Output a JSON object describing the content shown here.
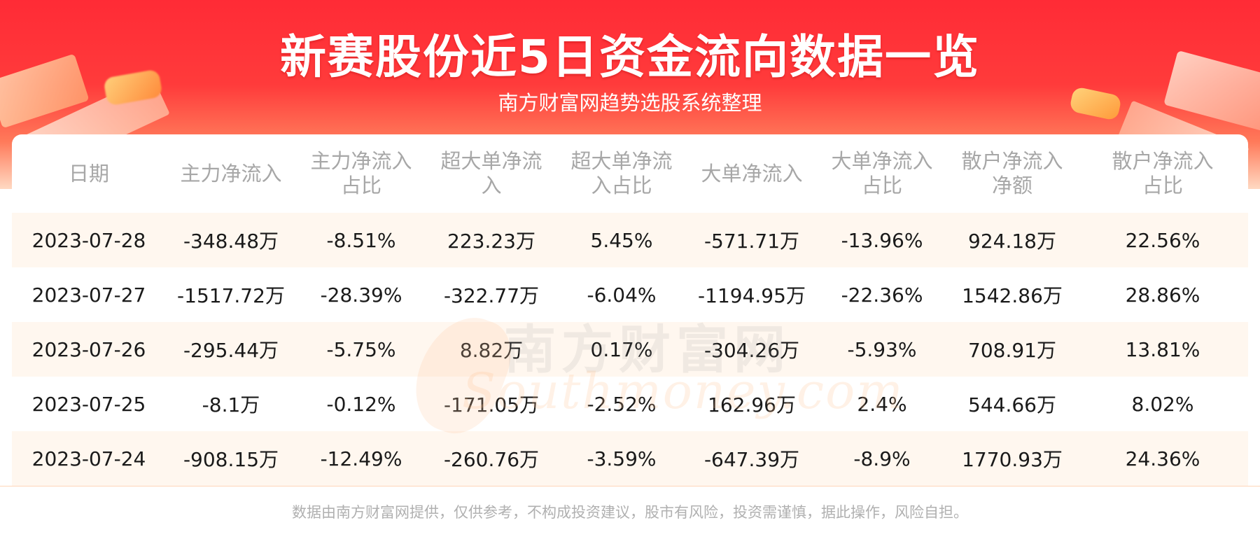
{
  "header": {
    "title": "新赛股份近5日资金流向数据一览",
    "subtitle": "南方财富网趋势选股系统整理"
  },
  "watermark": {
    "cn": "南方财富网",
    "en": "Southmoney.com"
  },
  "table": {
    "headers": [
      [
        "日期"
      ],
      [
        "主力净流入"
      ],
      [
        "主力净流入",
        "占比"
      ],
      [
        "超大单净流",
        "入"
      ],
      [
        "超大单净流",
        "入占比"
      ],
      [
        "大单净流入"
      ],
      [
        "大单净流入",
        "占比"
      ],
      [
        "散户净流入",
        "净额"
      ],
      [
        "散户净流入",
        "占比"
      ]
    ],
    "rows": [
      [
        "2023-07-28",
        "-348.48万",
        "-8.51%",
        "223.23万",
        "5.45%",
        "-571.71万",
        "-13.96%",
        "924.18万",
        "22.56%"
      ],
      [
        "2023-07-27",
        "-1517.72万",
        "-28.39%",
        "-322.77万",
        "-6.04%",
        "-1194.95万",
        "-22.36%",
        "1542.86万",
        "28.86%"
      ],
      [
        "2023-07-26",
        "-295.44万",
        "-5.75%",
        "8.82万",
        "0.17%",
        "-304.26万",
        "-5.93%",
        "708.91万",
        "13.81%"
      ],
      [
        "2023-07-25",
        "-8.1万",
        "-0.12%",
        "-171.05万",
        "-2.52%",
        "162.96万",
        "2.4%",
        "544.66万",
        "8.02%"
      ],
      [
        "2023-07-24",
        "-908.15万",
        "-12.49%",
        "-260.76万",
        "-3.59%",
        "-647.39万",
        "-8.9%",
        "1770.93万",
        "24.36%"
      ]
    ]
  },
  "footer": {
    "disclaimer": "数据由南方财富网提供，仅供参考，不构成投资建议，股市有风险，投资需谨慎，据此操作，风险自担。"
  }
}
